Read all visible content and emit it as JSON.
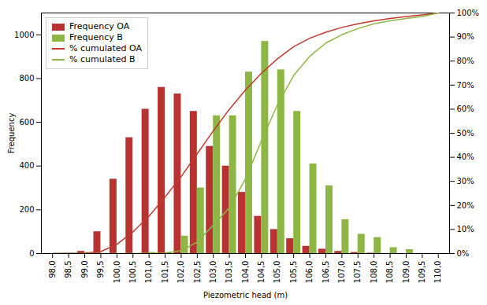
{
  "chart_data": {
    "type": "bar",
    "xlabel": "Piezometric head (m)",
    "ylabel": "Frequency",
    "x": [
      98.0,
      98.5,
      99.0,
      99.5,
      100.0,
      100.5,
      101.0,
      101.5,
      102.0,
      102.5,
      103.0,
      103.5,
      104.0,
      104.5,
      105.0,
      105.5,
      106.0,
      106.5,
      107.0,
      107.5,
      108.0,
      108.5,
      109.0,
      109.5,
      110.0
    ],
    "series": [
      {
        "name": "Frequency OA",
        "type": "bar",
        "color": "#b83232",
        "values": [
          0,
          0,
          10,
          100,
          340,
          530,
          660,
          760,
          730,
          650,
          490,
          400,
          280,
          170,
          110,
          68,
          33,
          20,
          10,
          5,
          2,
          0,
          0,
          0,
          0
        ]
      },
      {
        "name": "Frequency B",
        "type": "bar",
        "color": "#8db645",
        "values": [
          0,
          0,
          0,
          0,
          0,
          0,
          5,
          5,
          80,
          300,
          630,
          630,
          830,
          970,
          840,
          650,
          410,
          310,
          155,
          88,
          73,
          27,
          18,
          0,
          0
        ]
      },
      {
        "name": "% cumulated OA",
        "type": "line",
        "axis": "y2",
        "color": "#c0392b",
        "values": [
          0.0,
          0.001,
          0.002,
          0.008,
          0.038,
          0.09,
          0.155,
          0.235,
          0.32,
          0.415,
          0.51,
          0.6,
          0.68,
          0.75,
          0.81,
          0.86,
          0.895,
          0.92,
          0.94,
          0.955,
          0.967,
          0.977,
          0.985,
          0.992,
          1.0
        ]
      },
      {
        "name": "% cumulated B",
        "type": "line",
        "axis": "y2",
        "color": "#8db645",
        "values": [
          0.0,
          0.0,
          0.0,
          0.0,
          0.0,
          0.0,
          0.001,
          0.002,
          0.012,
          0.048,
          0.118,
          0.19,
          0.31,
          0.47,
          0.62,
          0.74,
          0.82,
          0.875,
          0.91,
          0.935,
          0.955,
          0.967,
          0.977,
          0.985,
          1.0
        ]
      }
    ],
    "xlim": [
      97.65,
      110.35
    ],
    "xticks": [
      {
        "value": 98.0,
        "label": "98,0"
      },
      {
        "value": 98.5,
        "label": "98,5"
      },
      {
        "value": 99.0,
        "label": "99,0"
      },
      {
        "value": 99.5,
        "label": "99,5"
      },
      {
        "value": 100.0,
        "label": "100,0"
      },
      {
        "value": 100.5,
        "label": "100,5"
      },
      {
        "value": 101.0,
        "label": "101,0"
      },
      {
        "value": 101.5,
        "label": "101,5"
      },
      {
        "value": 102.0,
        "label": "102,0"
      },
      {
        "value": 102.5,
        "label": "102,5"
      },
      {
        "value": 103.0,
        "label": "103,0"
      },
      {
        "value": 103.5,
        "label": "103,5"
      },
      {
        "value": 104.0,
        "label": "104,0"
      },
      {
        "value": 104.5,
        "label": "104,5"
      },
      {
        "value": 105.0,
        "label": "105,0"
      },
      {
        "value": 105.5,
        "label": "105,5"
      },
      {
        "value": 106.0,
        "label": "106,0"
      },
      {
        "value": 106.5,
        "label": "106,5"
      },
      {
        "value": 107.0,
        "label": "107,0"
      },
      {
        "value": 107.5,
        "label": "107,5"
      },
      {
        "value": 108.0,
        "label": "108,0"
      },
      {
        "value": 108.5,
        "label": "108,5"
      },
      {
        "value": 109.0,
        "label": "109,0"
      },
      {
        "value": 109.5,
        "label": "109,5"
      },
      {
        "value": 110.0,
        "label": "110,0"
      }
    ],
    "ylim": [
      0,
      1100
    ],
    "yticks": [
      0,
      200,
      400,
      600,
      800,
      1000
    ],
    "y2lim": [
      0,
      1.0
    ],
    "y2ticks": [
      {
        "value": 0,
        "label": "0%"
      },
      {
        "value": 0.1,
        "label": "10%"
      },
      {
        "value": 0.2,
        "label": "20%"
      },
      {
        "value": 0.3,
        "label": "30%"
      },
      {
        "value": 0.4,
        "label": "40%"
      },
      {
        "value": 0.5,
        "label": "50%"
      },
      {
        "value": 0.6,
        "label": "60%"
      },
      {
        "value": 0.7,
        "label": "70%"
      },
      {
        "value": 0.8,
        "label": "80%"
      },
      {
        "value": 0.9,
        "label": "90%"
      },
      {
        "value": 1.0,
        "label": "100%"
      }
    ],
    "legend": "upper left",
    "grid": false
  }
}
